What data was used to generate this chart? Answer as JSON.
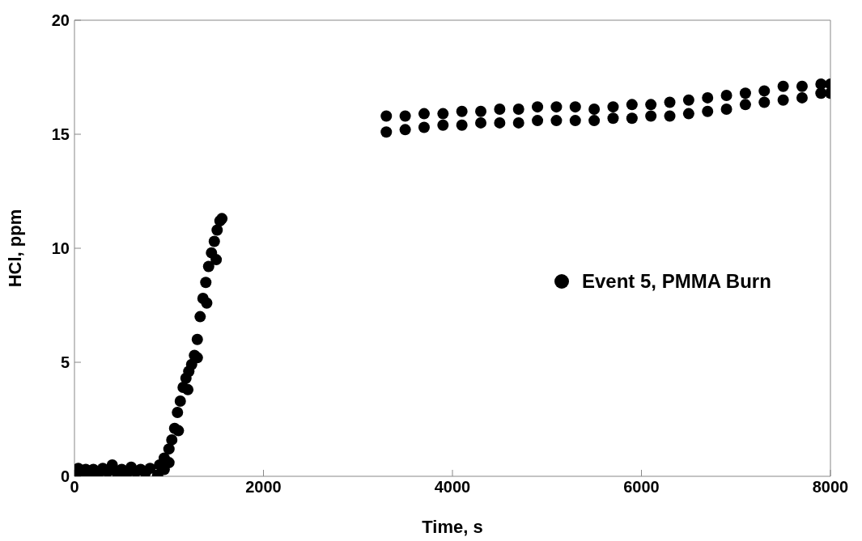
{
  "chart_data": {
    "type": "scatter",
    "xlabel": "Time, s",
    "ylabel": "HCl, ppm",
    "xlim": [
      0,
      8000
    ],
    "ylim": [
      0,
      20
    ],
    "xticks": [
      0,
      2000,
      4000,
      6000,
      8000
    ],
    "yticks": [
      0,
      5,
      10,
      15,
      20
    ],
    "grid": false,
    "legend": "right",
    "marker": "circle",
    "series": [
      {
        "name": "Event 5, PMMA Burn",
        "color": "#000000",
        "x": [
          0,
          40,
          80,
          120,
          160,
          200,
          250,
          300,
          350,
          400,
          450,
          500,
          550,
          600,
          650,
          700,
          750,
          800,
          880,
          900,
          950,
          1000,
          1030,
          1060,
          1090,
          1120,
          1150,
          1180,
          1210,
          1240,
          1270,
          1300,
          1330,
          1360,
          1390,
          1420,
          1450,
          1480,
          1510,
          1540,
          1560,
          950,
          1000,
          1100,
          1200,
          1300,
          1400,
          1500,
          3300,
          3300,
          3500,
          3500,
          3700,
          3700,
          3900,
          3900,
          4100,
          4100,
          4300,
          4300,
          4500,
          4500,
          4700,
          4700,
          4900,
          4900,
          5100,
          5100,
          5300,
          5300,
          5500,
          5500,
          5700,
          5700,
          5900,
          5900,
          6100,
          6100,
          6300,
          6300,
          6500,
          6500,
          6700,
          6700,
          6900,
          6900,
          7100,
          7100,
          7300,
          7300,
          7500,
          7500,
          7700,
          7700,
          7900,
          7900,
          8000,
          8000
        ],
        "values": [
          0.2,
          0.35,
          0.1,
          0.3,
          0.15,
          0.3,
          0.1,
          0.35,
          0.2,
          0.5,
          0.15,
          0.3,
          0.1,
          0.4,
          0.2,
          0.3,
          0.15,
          0.35,
          0.05,
          0.5,
          0.8,
          1.2,
          1.6,
          2.1,
          2.8,
          3.3,
          3.9,
          4.3,
          4.6,
          4.9,
          5.3,
          6.0,
          7.0,
          7.8,
          8.5,
          9.2,
          9.8,
          10.3,
          10.8,
          11.2,
          11.3,
          0.3,
          0.6,
          2.0,
          3.8,
          5.2,
          7.6,
          9.5,
          15.1,
          15.8,
          15.2,
          15.8,
          15.3,
          15.9,
          15.4,
          15.9,
          15.4,
          16.0,
          15.5,
          16.0,
          15.5,
          16.1,
          15.5,
          16.1,
          15.6,
          16.2,
          15.6,
          16.2,
          15.6,
          16.2,
          15.6,
          16.1,
          15.7,
          16.2,
          15.7,
          16.3,
          15.8,
          16.3,
          15.8,
          16.4,
          15.9,
          16.5,
          16.0,
          16.6,
          16.1,
          16.7,
          16.3,
          16.8,
          16.4,
          16.9,
          16.5,
          17.1,
          16.6,
          17.1,
          16.8,
          17.2,
          16.8,
          17.2
        ]
      }
    ]
  }
}
